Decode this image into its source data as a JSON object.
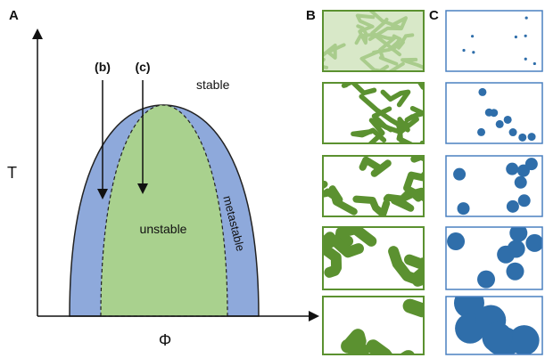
{
  "panels": {
    "a": {
      "label": "A",
      "y_axis": "T",
      "x_axis": "Φ",
      "arrow_b": "(b)",
      "arrow_c": "(c)",
      "region_stable": "stable",
      "region_unstable": "unstable",
      "region_metastable": "metastable"
    },
    "b": {
      "label": "B"
    },
    "c": {
      "label": "C"
    }
  }
}
